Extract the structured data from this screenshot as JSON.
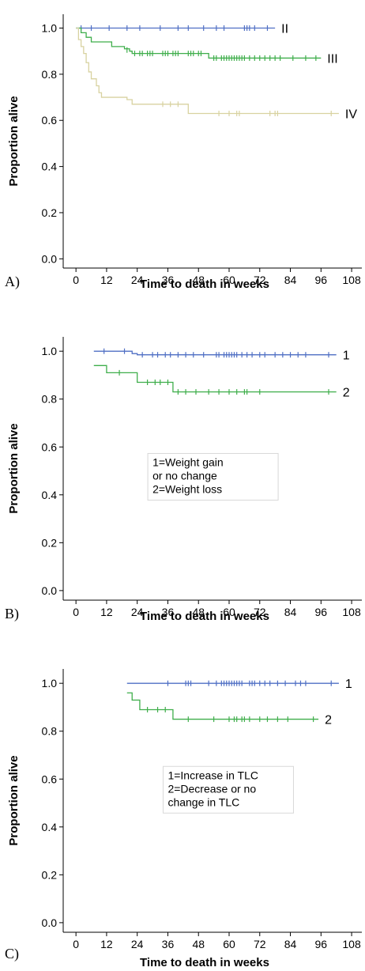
{
  "chart_data": [
    {
      "type": "line",
      "panel_label": "A)",
      "xlabel": "Time to death in weeks",
      "ylabel": "Proportion alive",
      "xticks": [
        "0",
        "12",
        "24",
        "36",
        "48",
        "60",
        "72",
        "84",
        "96",
        "108"
      ],
      "yticks": [
        "0.0",
        "0.2",
        "0.4",
        "0.6",
        "0.8",
        "1.0"
      ],
      "xlim": [
        -5,
        112
      ],
      "ylim": [
        -0.04,
        1.06
      ],
      "legend_box": null,
      "series": [
        {
          "name": "II",
          "color": "#4f6fc4",
          "steps": [
            [
              0,
              1.0
            ],
            [
              78,
              1.0
            ]
          ],
          "censored": [
            [
              2,
              1.0
            ],
            [
              6,
              1.0
            ],
            [
              13,
              1.0
            ],
            [
              20,
              1.0
            ],
            [
              25,
              1.0
            ],
            [
              33,
              1.0
            ],
            [
              40,
              1.0
            ],
            [
              44,
              1.0
            ],
            [
              50,
              1.0
            ],
            [
              55,
              1.0
            ],
            [
              58,
              1.0
            ],
            [
              66,
              1.0
            ],
            [
              67,
              1.0
            ],
            [
              68,
              1.0
            ],
            [
              70,
              1.0
            ],
            [
              75,
              1.0
            ]
          ]
        },
        {
          "name": "III",
          "color": "#3fae4b",
          "steps": [
            [
              0,
              1.0
            ],
            [
              2,
              0.98
            ],
            [
              4,
              0.96
            ],
            [
              6,
              0.94
            ],
            [
              14,
              0.92
            ],
            [
              19,
              0.91
            ],
            [
              21,
              0.9
            ],
            [
              22,
              0.89
            ],
            [
              52,
              0.87
            ],
            [
              96,
              0.87
            ]
          ],
          "censored": [
            [
              20,
              0.905
            ],
            [
              23,
              0.89
            ],
            [
              25,
              0.89
            ],
            [
              26,
              0.89
            ],
            [
              28,
              0.89
            ],
            [
              29,
              0.89
            ],
            [
              30,
              0.89
            ],
            [
              34,
              0.89
            ],
            [
              35,
              0.89
            ],
            [
              36,
              0.89
            ],
            [
              38,
              0.89
            ],
            [
              39,
              0.89
            ],
            [
              40,
              0.89
            ],
            [
              44,
              0.89
            ],
            [
              45,
              0.89
            ],
            [
              46,
              0.89
            ],
            [
              48,
              0.89
            ],
            [
              49,
              0.89
            ],
            [
              54,
              0.87
            ],
            [
              55,
              0.87
            ],
            [
              57,
              0.87
            ],
            [
              58,
              0.87
            ],
            [
              59,
              0.87
            ],
            [
              60,
              0.87
            ],
            [
              61,
              0.87
            ],
            [
              62,
              0.87
            ],
            [
              63,
              0.87
            ],
            [
              64,
              0.87
            ],
            [
              65,
              0.87
            ],
            [
              66,
              0.87
            ],
            [
              68,
              0.87
            ],
            [
              70,
              0.87
            ],
            [
              72,
              0.87
            ],
            [
              74,
              0.87
            ],
            [
              76,
              0.87
            ],
            [
              78,
              0.87
            ],
            [
              80,
              0.87
            ],
            [
              85,
              0.87
            ],
            [
              90,
              0.87
            ],
            [
              94,
              0.87
            ]
          ]
        },
        {
          "name": "IV",
          "color": "#d8d2a0",
          "steps": [
            [
              0,
              1.0
            ],
            [
              1,
              0.95
            ],
            [
              2,
              0.92
            ],
            [
              3,
              0.89
            ],
            [
              4,
              0.85
            ],
            [
              5,
              0.81
            ],
            [
              6,
              0.78
            ],
            [
              8,
              0.75
            ],
            [
              9,
              0.72
            ],
            [
              10,
              0.7
            ],
            [
              20,
              0.69
            ],
            [
              22,
              0.67
            ],
            [
              44,
              0.63
            ],
            [
              103,
              0.63
            ]
          ],
          "censored": [
            [
              34,
              0.67
            ],
            [
              37,
              0.67
            ],
            [
              40,
              0.67
            ],
            [
              56,
              0.63
            ],
            [
              60,
              0.63
            ],
            [
              63,
              0.63
            ],
            [
              64,
              0.63
            ],
            [
              76,
              0.63
            ],
            [
              78,
              0.63
            ],
            [
              79,
              0.63
            ],
            [
              100,
              0.63
            ]
          ]
        }
      ]
    },
    {
      "type": "line",
      "panel_label": "B)",
      "xlabel": "Time to death in weeks",
      "ylabel": "Proportion alive",
      "xticks": [
        "0",
        "12",
        "24",
        "36",
        "48",
        "60",
        "72",
        "84",
        "96",
        "108"
      ],
      "yticks": [
        "0.0",
        "0.2",
        "0.4",
        "0.6",
        "0.8",
        "1.0"
      ],
      "xlim": [
        -5,
        112
      ],
      "ylim": [
        -0.04,
        1.06
      ],
      "legend_box": {
        "lines": [
          "1=Weight gain",
          "or no change",
          "2=Weight loss"
        ],
        "x": 30,
        "y": 0.52
      },
      "series": [
        {
          "name": "1",
          "color": "#4f6fc4",
          "steps": [
            [
              7,
              1.0
            ],
            [
              22,
              0.99
            ],
            [
              24,
              0.985
            ],
            [
              102,
              0.985
            ]
          ],
          "censored": [
            [
              11,
              1.0
            ],
            [
              19,
              1.0
            ],
            [
              26,
              0.985
            ],
            [
              30,
              0.985
            ],
            [
              32,
              0.985
            ],
            [
              35,
              0.985
            ],
            [
              37,
              0.985
            ],
            [
              40,
              0.985
            ],
            [
              43,
              0.985
            ],
            [
              46,
              0.985
            ],
            [
              50,
              0.985
            ],
            [
              55,
              0.985
            ],
            [
              56,
              0.985
            ],
            [
              58,
              0.985
            ],
            [
              59,
              0.985
            ],
            [
              60,
              0.985
            ],
            [
              61,
              0.985
            ],
            [
              62,
              0.985
            ],
            [
              63,
              0.985
            ],
            [
              65,
              0.985
            ],
            [
              67,
              0.985
            ],
            [
              69,
              0.985
            ],
            [
              72,
              0.985
            ],
            [
              74,
              0.985
            ],
            [
              78,
              0.985
            ],
            [
              81,
              0.985
            ],
            [
              84,
              0.985
            ],
            [
              87,
              0.985
            ],
            [
              90,
              0.985
            ],
            [
              99,
              0.985
            ]
          ]
        },
        {
          "name": "2",
          "color": "#3fae4b",
          "steps": [
            [
              7,
              0.94
            ],
            [
              12,
              0.91
            ],
            [
              24,
              0.87
            ],
            [
              38,
              0.83
            ],
            [
              102,
              0.83
            ]
          ],
          "censored": [
            [
              17,
              0.91
            ],
            [
              28,
              0.87
            ],
            [
              31,
              0.87
            ],
            [
              33,
              0.87
            ],
            [
              36,
              0.87
            ],
            [
              40,
              0.83
            ],
            [
              43,
              0.83
            ],
            [
              47,
              0.83
            ],
            [
              52,
              0.83
            ],
            [
              56,
              0.83
            ],
            [
              60,
              0.83
            ],
            [
              63,
              0.83
            ],
            [
              66,
              0.83
            ],
            [
              67,
              0.83
            ],
            [
              72,
              0.83
            ],
            [
              99,
              0.83
            ]
          ]
        }
      ]
    },
    {
      "type": "line",
      "panel_label": "C)",
      "xlabel": "Time to death in weeks",
      "ylabel": "Proportion alive",
      "xticks": [
        "0",
        "12",
        "24",
        "36",
        "48",
        "60",
        "72",
        "84",
        "96",
        "108"
      ],
      "yticks": [
        "0.0",
        "0.2",
        "0.4",
        "0.6",
        "0.8",
        "1.0"
      ],
      "xlim": [
        -5,
        112
      ],
      "ylim": [
        -0.04,
        1.06
      ],
      "legend_box": {
        "lines": [
          "1=Increase in TLC",
          "2=Decrease or no",
          "change in TLC"
        ],
        "x": 36,
        "y": 0.6
      },
      "series": [
        {
          "name": "1",
          "color": "#4f6fc4",
          "steps": [
            [
              20,
              1.0
            ],
            [
              103,
              1.0
            ]
          ],
          "censored": [
            [
              36,
              1.0
            ],
            [
              43,
              1.0
            ],
            [
              44,
              1.0
            ],
            [
              45,
              1.0
            ],
            [
              52,
              1.0
            ],
            [
              55,
              1.0
            ],
            [
              57,
              1.0
            ],
            [
              58,
              1.0
            ],
            [
              59,
              1.0
            ],
            [
              60,
              1.0
            ],
            [
              61,
              1.0
            ],
            [
              62,
              1.0
            ],
            [
              63,
              1.0
            ],
            [
              64,
              1.0
            ],
            [
              65,
              1.0
            ],
            [
              68,
              1.0
            ],
            [
              69,
              1.0
            ],
            [
              70,
              1.0
            ],
            [
              72,
              1.0
            ],
            [
              74,
              1.0
            ],
            [
              76,
              1.0
            ],
            [
              79,
              1.0
            ],
            [
              82,
              1.0
            ],
            [
              86,
              1.0
            ],
            [
              88,
              1.0
            ],
            [
              90,
              1.0
            ],
            [
              100,
              1.0
            ]
          ]
        },
        {
          "name": "2",
          "color": "#3fae4b",
          "steps": [
            [
              20,
              0.96
            ],
            [
              22,
              0.93
            ],
            [
              25,
              0.89
            ],
            [
              38,
              0.85
            ],
            [
              95,
              0.85
            ]
          ],
          "censored": [
            [
              28,
              0.89
            ],
            [
              32,
              0.89
            ],
            [
              35,
              0.89
            ],
            [
              44,
              0.85
            ],
            [
              54,
              0.85
            ],
            [
              60,
              0.85
            ],
            [
              62,
              0.85
            ],
            [
              63,
              0.85
            ],
            [
              65,
              0.85
            ],
            [
              66,
              0.85
            ],
            [
              68,
              0.85
            ],
            [
              72,
              0.85
            ],
            [
              75,
              0.85
            ],
            [
              79,
              0.85
            ],
            [
              83,
              0.85
            ],
            [
              93,
              0.85
            ]
          ]
        }
      ]
    }
  ]
}
